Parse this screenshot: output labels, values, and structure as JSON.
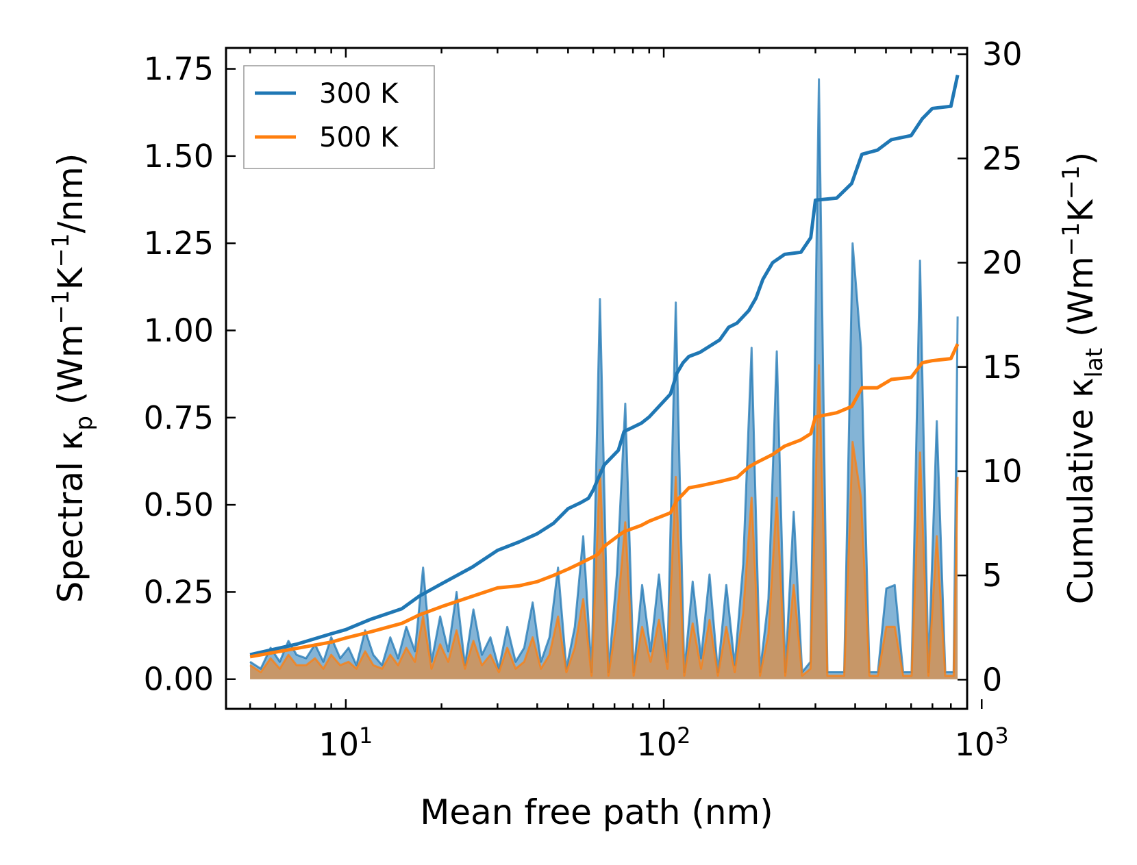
{
  "chart_data": {
    "type": "line",
    "x_scale": "log",
    "xlim": [
      4.2,
      900
    ],
    "xlabel": "Mean free path (nm)",
    "x_ticks": [
      {
        "value": 10,
        "base": "10",
        "exp": "1"
      },
      {
        "value": 100,
        "base": "10",
        "exp": "2"
      },
      {
        "value": 1000,
        "base": "10",
        "exp": "3"
      }
    ],
    "y_left": {
      "label_parts": [
        "Spectral κ",
        "p",
        " (Wm",
        "−1",
        "K",
        "−1",
        "/nm)"
      ],
      "lim": [
        -0.085,
        1.81
      ],
      "ticks": [
        "0.00",
        "0.25",
        "0.50",
        "0.75",
        "1.00",
        "1.25",
        "1.50",
        "1.75"
      ]
    },
    "y_right": {
      "label_parts": [
        "Cumulative κ",
        "lat",
        " (Wm",
        "−1",
        "K",
        "−1",
        ")"
      ],
      "lim": [
        -1.4,
        30.3
      ],
      "ticks": [
        "0",
        "5",
        "10",
        "15",
        "20",
        "25",
        "30"
      ]
    },
    "legend": {
      "position": "top-left",
      "entries": [
        {
          "name": "300 K",
          "color": "#1f77b4"
        },
        {
          "name": "500 K",
          "color": "#ff7f0e"
        }
      ]
    },
    "series": [
      {
        "name": "300 K",
        "color": "#1f77b4",
        "axis": "right",
        "kind": "cumulative",
        "x": [
          5,
          7,
          9,
          10,
          12,
          15,
          17,
          20,
          25,
          30,
          35,
          40,
          45,
          50,
          55,
          58,
          60,
          62,
          65,
          72,
          75,
          85,
          90,
          105,
          110,
          115,
          120,
          130,
          150,
          160,
          170,
          185,
          195,
          205,
          220,
          240,
          270,
          290,
          300,
          350,
          390,
          420,
          470,
          520,
          600,
          650,
          700,
          800,
          840
        ],
        "values": [
          1.2,
          1.7,
          2.2,
          2.4,
          2.9,
          3.4,
          4.0,
          4.6,
          5.4,
          6.2,
          6.6,
          7.0,
          7.5,
          8.2,
          8.5,
          8.7,
          9.1,
          9.6,
          10.3,
          11.0,
          11.9,
          12.3,
          12.6,
          13.7,
          14.7,
          15.2,
          15.5,
          15.7,
          16.3,
          16.9,
          17.1,
          17.7,
          18.3,
          19.2,
          20.0,
          20.4,
          20.5,
          21.2,
          23.0,
          23.1,
          23.8,
          25.2,
          25.4,
          25.9,
          26.1,
          26.9,
          27.4,
          27.5,
          29.0
        ]
      },
      {
        "name": "500 K",
        "color": "#ff7f0e",
        "axis": "right",
        "kind": "cumulative",
        "x": [
          5,
          7,
          9,
          10,
          12,
          15,
          17,
          20,
          25,
          30,
          35,
          40,
          45,
          50,
          55,
          62,
          65,
          72,
          75,
          85,
          90,
          105,
          110,
          115,
          120,
          130,
          150,
          170,
          185,
          195,
          220,
          240,
          270,
          290,
          300,
          350,
          390,
          420,
          470,
          520,
          600,
          650,
          700,
          800,
          840
        ],
        "values": [
          1.1,
          1.5,
          1.8,
          2.0,
          2.3,
          2.7,
          3.1,
          3.5,
          4.0,
          4.4,
          4.5,
          4.7,
          5.0,
          5.3,
          5.6,
          6.0,
          6.4,
          6.9,
          7.1,
          7.4,
          7.6,
          8.0,
          8.6,
          8.9,
          9.2,
          9.3,
          9.5,
          9.7,
          10.2,
          10.4,
          10.8,
          11.2,
          11.5,
          11.8,
          12.6,
          12.8,
          13.1,
          14.0,
          14.0,
          14.4,
          14.5,
          15.2,
          15.3,
          15.4,
          16.1
        ]
      },
      {
        "name": "300 K spectral",
        "color": "#1f77b4",
        "axis": "left",
        "kind": "spectral",
        "x": [
          5,
          5.4,
          5.8,
          6.2,
          6.6,
          7.0,
          7.5,
          8.0,
          8.5,
          9.0,
          9.6,
          10.2,
          10.8,
          11.5,
          12.2,
          13.0,
          13.8,
          14.6,
          15.5,
          16.5,
          17.5,
          18.6,
          19.8,
          21.0,
          22.3,
          23.7,
          25.2,
          26.8,
          28.5,
          30.3,
          32.2,
          34.2,
          36.4,
          38.7,
          41.1,
          43.7,
          46.5,
          49.4,
          52.5,
          55.8,
          59.3,
          63.0,
          67.0,
          71.2,
          75.7,
          80.4,
          85.5,
          90.9,
          96.6,
          102.7,
          109.1,
          116.0,
          123.3,
          131.0,
          139.3,
          148.0,
          157.3,
          167.2,
          177.7,
          188.9,
          200.8,
          213.4,
          226.8,
          241.1,
          256.3,
          272.4,
          289.5,
          307.7,
          327.1,
          347.6,
          369.5,
          392.7,
          417.4,
          443.7,
          471.6,
          501.2,
          532.7,
          566.2,
          601.8,
          639.7,
          679.9,
          722.6,
          768.1,
          816.4,
          840
        ],
        "values": [
          0.05,
          0.03,
          0.09,
          0.05,
          0.11,
          0.07,
          0.06,
          0.1,
          0.05,
          0.12,
          0.06,
          0.09,
          0.04,
          0.14,
          0.07,
          0.04,
          0.12,
          0.06,
          0.15,
          0.08,
          0.32,
          0.05,
          0.18,
          0.08,
          0.25,
          0.04,
          0.2,
          0.07,
          0.12,
          0.03,
          0.15,
          0.05,
          0.09,
          0.22,
          0.05,
          0.12,
          0.32,
          0.03,
          0.15,
          0.41,
          0.02,
          1.09,
          0.02,
          0.3,
          0.79,
          0.02,
          0.27,
          0.08,
          0.3,
          0.05,
          1.08,
          0.02,
          0.28,
          0.06,
          0.3,
          0.02,
          0.27,
          0.04,
          0.33,
          0.95,
          0.02,
          0.23,
          0.94,
          0.02,
          0.48,
          0.02,
          0.05,
          1.72,
          0.02,
          0.02,
          0.02,
          1.25,
          0.95,
          0.02,
          0.02,
          0.26,
          0.27,
          0.02,
          0.02,
          1.2,
          0.02,
          0.74,
          0.02,
          0.02,
          1.04
        ]
      },
      {
        "name": "500 K spectral",
        "color": "#ff7f0e",
        "axis": "left",
        "kind": "spectral",
        "x": [
          5,
          5.4,
          5.8,
          6.2,
          6.6,
          7.0,
          7.5,
          8.0,
          8.5,
          9.0,
          9.6,
          10.2,
          10.8,
          11.5,
          12.2,
          13.0,
          13.8,
          14.6,
          15.5,
          16.5,
          17.5,
          18.6,
          19.8,
          21.0,
          22.3,
          23.7,
          25.2,
          26.8,
          28.5,
          30.3,
          32.2,
          34.2,
          36.4,
          38.7,
          41.1,
          43.7,
          46.5,
          49.4,
          52.5,
          55.8,
          59.3,
          63.0,
          67.0,
          71.2,
          75.7,
          80.4,
          85.5,
          90.9,
          96.6,
          102.7,
          109.1,
          116.0,
          123.3,
          131.0,
          139.3,
          148.0,
          157.3,
          167.2,
          177.7,
          188.9,
          200.8,
          213.4,
          226.8,
          241.1,
          256.3,
          272.4,
          289.5,
          307.7,
          327.1,
          347.6,
          369.5,
          392.7,
          417.4,
          443.7,
          471.6,
          501.2,
          532.7,
          566.2,
          601.8,
          639.7,
          679.9,
          722.6,
          768.1,
          816.4,
          840
        ],
        "values": [
          0.04,
          0.02,
          0.06,
          0.03,
          0.07,
          0.04,
          0.04,
          0.06,
          0.03,
          0.07,
          0.04,
          0.05,
          0.03,
          0.08,
          0.04,
          0.03,
          0.07,
          0.04,
          0.09,
          0.05,
          0.18,
          0.03,
          0.1,
          0.05,
          0.14,
          0.03,
          0.11,
          0.04,
          0.07,
          0.02,
          0.09,
          0.03,
          0.05,
          0.12,
          0.03,
          0.07,
          0.18,
          0.02,
          0.09,
          0.23,
          0.01,
          0.6,
          0.01,
          0.17,
          0.45,
          0.01,
          0.15,
          0.05,
          0.17,
          0.03,
          0.58,
          0.01,
          0.16,
          0.03,
          0.17,
          0.01,
          0.15,
          0.02,
          0.19,
          0.52,
          0.01,
          0.13,
          0.52,
          0.01,
          0.27,
          0.01,
          0.03,
          0.9,
          0.01,
          0.01,
          0.01,
          0.68,
          0.52,
          0.01,
          0.01,
          0.15,
          0.15,
          0.01,
          0.01,
          0.65,
          0.01,
          0.41,
          0.01,
          0.01,
          0.58
        ]
      }
    ]
  }
}
